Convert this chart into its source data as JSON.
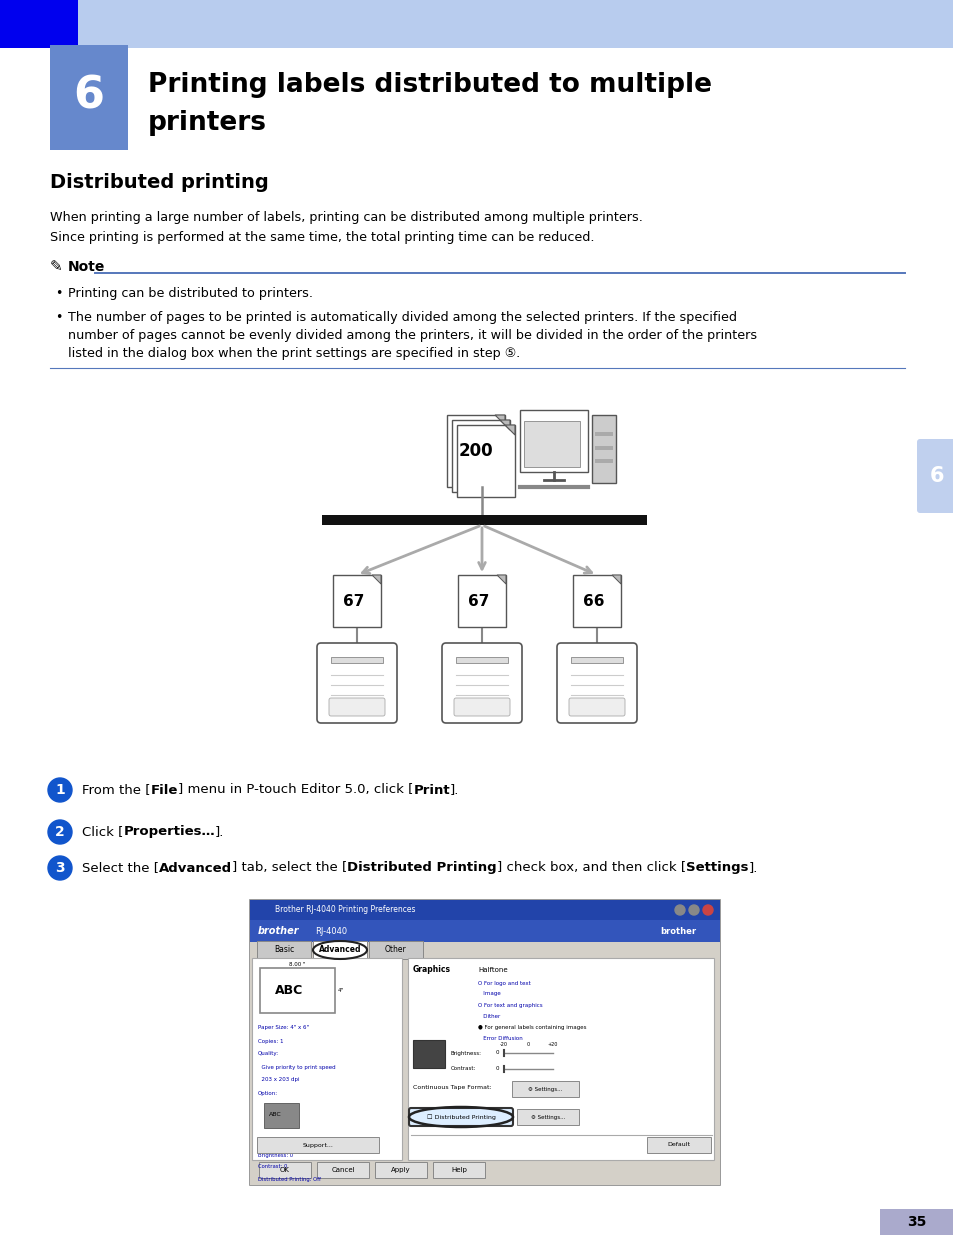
{
  "page_bg": "#ffffff",
  "header_bar_color": "#b8ccee",
  "header_bar_dark": "#0000ee",
  "chapter_box_color": "#6688cc",
  "chapter_number": "6",
  "title_line1": "Printing labels distributed to multiple",
  "title_line2": "printers",
  "section_title": "Distributed printing",
  "body_text1": "When printing a large number of labels, printing can be distributed among multiple printers.",
  "body_text2": "Since printing is performed at the same time, the total printing time can be reduced.",
  "note_label": "Note",
  "note_bullet1": "Printing can be distributed to printers.",
  "note_bullet2a": "The number of pages to be printed is automatically divided among the selected printers. If the specified",
  "note_bullet2b": "number of pages cannot be evenly divided among the printers, it will be divided in the order of the printers",
  "note_bullet2c": "listed in the dialog box when the print settings are specified in step ⑤.",
  "step1_parts": [
    [
      "From the [",
      false
    ],
    [
      "File",
      true
    ],
    [
      "] menu in P-touch Editor 5.0, click [",
      false
    ],
    [
      "Print",
      true
    ],
    [
      "].",
      false
    ]
  ],
  "step2_parts": [
    [
      "Click [",
      false
    ],
    [
      "Properties…",
      true
    ],
    [
      "].",
      false
    ]
  ],
  "step3_parts": [
    [
      "Select the [",
      false
    ],
    [
      "Advanced",
      true
    ],
    [
      "] tab, select the [",
      false
    ],
    [
      "Distributed Printing",
      true
    ],
    [
      "] check box, and then click [",
      false
    ],
    [
      "Settings",
      true
    ],
    [
      "].",
      false
    ]
  ],
  "page_number": "35",
  "side_tab_color": "#c0d0ee",
  "side_tab_number": "6",
  "note_line_color": "#5577bb",
  "diagram_200": "200",
  "diagram_67a": "67",
  "diagram_67b": "67",
  "diagram_66": "66"
}
